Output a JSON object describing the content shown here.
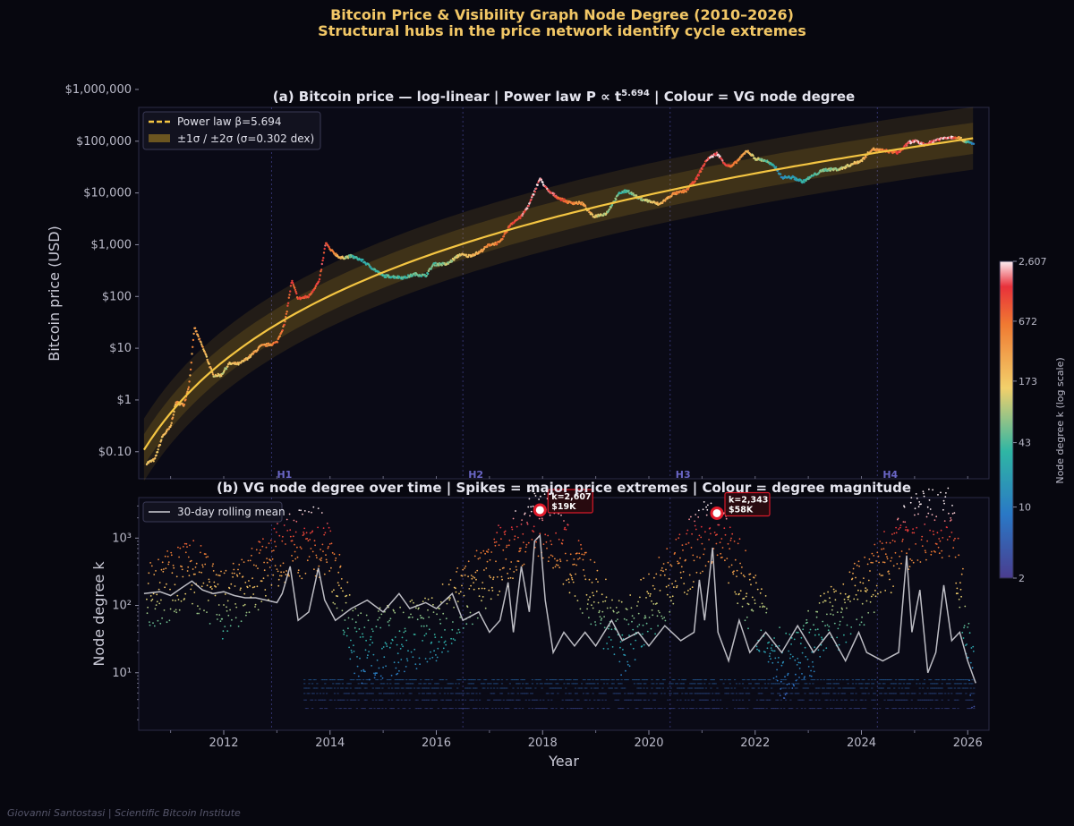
{
  "title_line1": "Bitcoin Price & Visibility Graph Node Degree  (2010–2026)",
  "title_line2": "Structural hubs in the price network identify cycle extremes",
  "credit": "Giovanni Santostasi  |  Scientific Bitcoin Institute",
  "colors": {
    "background": "#07070f",
    "axes_bg": "#0a0a16",
    "power_law": "#f4c542",
    "band": "#d9a520",
    "halving": "#4f4fa8",
    "rolling_mean": "#cfcfd6",
    "annotation": "#e21b2b"
  },
  "chart_data": [
    {
      "type": "scatter",
      "panel": "a",
      "title_prefix": "(a)  Bitcoin price — log-linear  |  Power law P ∝ t",
      "title_exponent": "5.694",
      "title_suffix": "  |  Colour = VG node degree",
      "ylabel": "Bitcoin price (USD)",
      "yscale": "log",
      "ylim": [
        0.03,
        450000
      ],
      "xlim": [
        2010.4,
        2026.4
      ],
      "yticks": [
        0.1,
        1,
        10,
        100,
        1000,
        10000,
        100000,
        1000000
      ],
      "ytick_labels": [
        "$0.10",
        "$1",
        "$10",
        "$100",
        "$1,000",
        "$10,000",
        "$100,000",
        "$1,000,000"
      ],
      "legend": {
        "placement": "top-left",
        "power_law_label": "Power law  β=5.694",
        "band_label": "±1σ / ±2σ  (σ=0.302 dex)"
      },
      "power_law": {
        "beta": 5.694,
        "sigma_dex": 0.302,
        "anchor_year": 2026.0,
        "anchor_price": 110000
      },
      "halvings": [
        {
          "label": "H1",
          "year": 2012.9
        },
        {
          "label": "H2",
          "year": 2016.5
        },
        {
          "label": "H3",
          "year": 2020.4
        },
        {
          "label": "H4",
          "year": 2024.3
        }
      ],
      "price_points": [
        [
          2010.55,
          0.06
        ],
        [
          2010.7,
          0.07
        ],
        [
          2010.85,
          0.2
        ],
        [
          2011.0,
          0.3
        ],
        [
          2011.1,
          0.9
        ],
        [
          2011.25,
          0.8
        ],
        [
          2011.35,
          2
        ],
        [
          2011.45,
          25
        ],
        [
          2011.55,
          14
        ],
        [
          2011.65,
          8
        ],
        [
          2011.8,
          3
        ],
        [
          2011.95,
          3
        ],
        [
          2012.1,
          5
        ],
        [
          2012.3,
          5
        ],
        [
          2012.5,
          7
        ],
        [
          2012.7,
          11
        ],
        [
          2012.9,
          12
        ],
        [
          2013.0,
          13
        ],
        [
          2013.15,
          30
        ],
        [
          2013.28,
          200
        ],
        [
          2013.4,
          90
        ],
        [
          2013.6,
          100
        ],
        [
          2013.8,
          200
        ],
        [
          2013.92,
          1100
        ],
        [
          2014.0,
          800
        ],
        [
          2014.2,
          550
        ],
        [
          2014.4,
          600
        ],
        [
          2014.6,
          500
        ],
        [
          2014.8,
          350
        ],
        [
          2015.0,
          250
        ],
        [
          2015.2,
          240
        ],
        [
          2015.4,
          230
        ],
        [
          2015.6,
          270
        ],
        [
          2015.8,
          250
        ],
        [
          2015.95,
          420
        ],
        [
          2016.2,
          420
        ],
        [
          2016.45,
          650
        ],
        [
          2016.6,
          600
        ],
        [
          2016.8,
          700
        ],
        [
          2017.0,
          1000
        ],
        [
          2017.2,
          1100
        ],
        [
          2017.4,
          2500
        ],
        [
          2017.6,
          3500
        ],
        [
          2017.75,
          6000
        ],
        [
          2017.95,
          19000
        ],
        [
          2018.1,
          11000
        ],
        [
          2018.3,
          8000
        ],
        [
          2018.5,
          6500
        ],
        [
          2018.75,
          6300
        ],
        [
          2018.95,
          3500
        ],
        [
          2019.2,
          4000
        ],
        [
          2019.45,
          10000
        ],
        [
          2019.6,
          11000
        ],
        [
          2019.8,
          8000
        ],
        [
          2019.95,
          7200
        ],
        [
          2020.2,
          6000
        ],
        [
          2020.45,
          9500
        ],
        [
          2020.7,
          11000
        ],
        [
          2020.9,
          19000
        ],
        [
          2021.0,
          30000
        ],
        [
          2021.1,
          45000
        ],
        [
          2021.28,
          58000
        ],
        [
          2021.45,
          35000
        ],
        [
          2021.55,
          32000
        ],
        [
          2021.7,
          45000
        ],
        [
          2021.85,
          66000
        ],
        [
          2022.0,
          46000
        ],
        [
          2022.2,
          42000
        ],
        [
          2022.4,
          30000
        ],
        [
          2022.5,
          20000
        ],
        [
          2022.7,
          20000
        ],
        [
          2022.9,
          16500
        ],
        [
          2023.1,
          22000
        ],
        [
          2023.3,
          28000
        ],
        [
          2023.6,
          29000
        ],
        [
          2023.85,
          37000
        ],
        [
          2024.0,
          42000
        ],
        [
          2024.2,
          70000
        ],
        [
          2024.45,
          65000
        ],
        [
          2024.7,
          60000
        ],
        [
          2024.9,
          95000
        ],
        [
          2025.0,
          100000
        ],
        [
          2025.2,
          85000
        ],
        [
          2025.4,
          105000
        ],
        [
          2025.6,
          118000
        ],
        [
          2025.8,
          120000
        ],
        [
          2026.0,
          95000
        ],
        [
          2026.1,
          88000
        ]
      ],
      "degree_by_year": [
        [
          2010.5,
          150
        ],
        [
          2011.4,
          400
        ],
        [
          2012.0,
          120
        ],
        [
          2013.25,
          900
        ],
        [
          2013.92,
          1200
        ],
        [
          2014.5,
          30
        ],
        [
          2016.0,
          60
        ],
        [
          2017.95,
          2607
        ],
        [
          2019.5,
          40
        ],
        [
          2021.28,
          2343
        ],
        [
          2022.5,
          15
        ],
        [
          2024.2,
          300
        ],
        [
          2024.95,
          1800
        ],
        [
          2025.7,
          2200
        ],
        [
          2026.1,
          10
        ]
      ]
    },
    {
      "type": "scatter",
      "panel": "b",
      "title": "(b)  VG node degree over time  |  Spikes = major price extremes  |  Colour = degree magnitude",
      "ylabel": "Node degree  k",
      "xlabel": "Year",
      "yscale": "log",
      "ylim": [
        1.4,
        4000
      ],
      "xlim": [
        2010.4,
        2026.4
      ],
      "yticks": [
        10,
        100,
        1000
      ],
      "ytick_labels": [
        "10¹",
        "10²",
        "10³"
      ],
      "xticks": [
        2012,
        2014,
        2016,
        2018,
        2020,
        2022,
        2024,
        2026
      ],
      "xtick_labels": [
        "2012",
        "2014",
        "2016",
        "2018",
        "2020",
        "2022",
        "2024",
        "2026"
      ],
      "legend": {
        "placement": "top-left",
        "label": "30-day rolling mean"
      },
      "rolling_mean": [
        [
          2010.5,
          150
        ],
        [
          2010.8,
          160
        ],
        [
          2011.0,
          140
        ],
        [
          2011.2,
          180
        ],
        [
          2011.4,
          230
        ],
        [
          2011.6,
          170
        ],
        [
          2011.8,
          150
        ],
        [
          2012.0,
          160
        ],
        [
          2012.2,
          140
        ],
        [
          2012.4,
          130
        ],
        [
          2012.6,
          130
        ],
        [
          2012.8,
          120
        ],
        [
          2013.0,
          110
        ],
        [
          2013.1,
          150
        ],
        [
          2013.25,
          380
        ],
        [
          2013.4,
          60
        ],
        [
          2013.6,
          80
        ],
        [
          2013.78,
          360
        ],
        [
          2013.9,
          120
        ],
        [
          2014.1,
          60
        ],
        [
          2014.4,
          90
        ],
        [
          2014.7,
          120
        ],
        [
          2015.0,
          80
        ],
        [
          2015.3,
          150
        ],
        [
          2015.5,
          90
        ],
        [
          2015.8,
          110
        ],
        [
          2016.0,
          90
        ],
        [
          2016.3,
          150
        ],
        [
          2016.5,
          60
        ],
        [
          2016.8,
          80
        ],
        [
          2017.0,
          40
        ],
        [
          2017.2,
          60
        ],
        [
          2017.35,
          220
        ],
        [
          2017.45,
          40
        ],
        [
          2017.6,
          380
        ],
        [
          2017.75,
          80
        ],
        [
          2017.85,
          900
        ],
        [
          2017.95,
          1100
        ],
        [
          2018.05,
          120
        ],
        [
          2018.2,
          20
        ],
        [
          2018.4,
          40
        ],
        [
          2018.6,
          25
        ],
        [
          2018.8,
          40
        ],
        [
          2019.0,
          25
        ],
        [
          2019.3,
          60
        ],
        [
          2019.5,
          30
        ],
        [
          2019.8,
          40
        ],
        [
          2020.0,
          25
        ],
        [
          2020.3,
          50
        ],
        [
          2020.6,
          30
        ],
        [
          2020.85,
          40
        ],
        [
          2020.95,
          240
        ],
        [
          2021.05,
          60
        ],
        [
          2021.2,
          720
        ],
        [
          2021.3,
          40
        ],
        [
          2021.5,
          15
        ],
        [
          2021.7,
          60
        ],
        [
          2021.9,
          20
        ],
        [
          2022.2,
          40
        ],
        [
          2022.5,
          20
        ],
        [
          2022.8,
          50
        ],
        [
          2023.1,
          20
        ],
        [
          2023.4,
          40
        ],
        [
          2023.7,
          15
        ],
        [
          2023.95,
          40
        ],
        [
          2024.1,
          20
        ],
        [
          2024.4,
          15
        ],
        [
          2024.7,
          20
        ],
        [
          2024.85,
          550
        ],
        [
          2024.95,
          40
        ],
        [
          2025.1,
          170
        ],
        [
          2025.25,
          10
        ],
        [
          2025.4,
          20
        ],
        [
          2025.55,
          200
        ],
        [
          2025.7,
          30
        ],
        [
          2025.85,
          40
        ],
        [
          2026.0,
          15
        ],
        [
          2026.15,
          7
        ]
      ],
      "annotations": [
        {
          "label_k": "k=2,607",
          "label_price": "$19K",
          "year": 2017.95,
          "k": 2607
        },
        {
          "label_k": "k=2,343",
          "label_price": "$58K",
          "year": 2021.28,
          "k": 2343
        }
      ]
    }
  ],
  "colorbar": {
    "label": "Node degree  k  (log scale)",
    "scale": "log",
    "range": [
      2,
      2607
    ],
    "ticks": [
      2,
      10,
      43,
      173,
      672,
      2607
    ],
    "tick_labels": [
      "2",
      "10",
      "43",
      "173",
      "672",
      "2,607"
    ]
  }
}
